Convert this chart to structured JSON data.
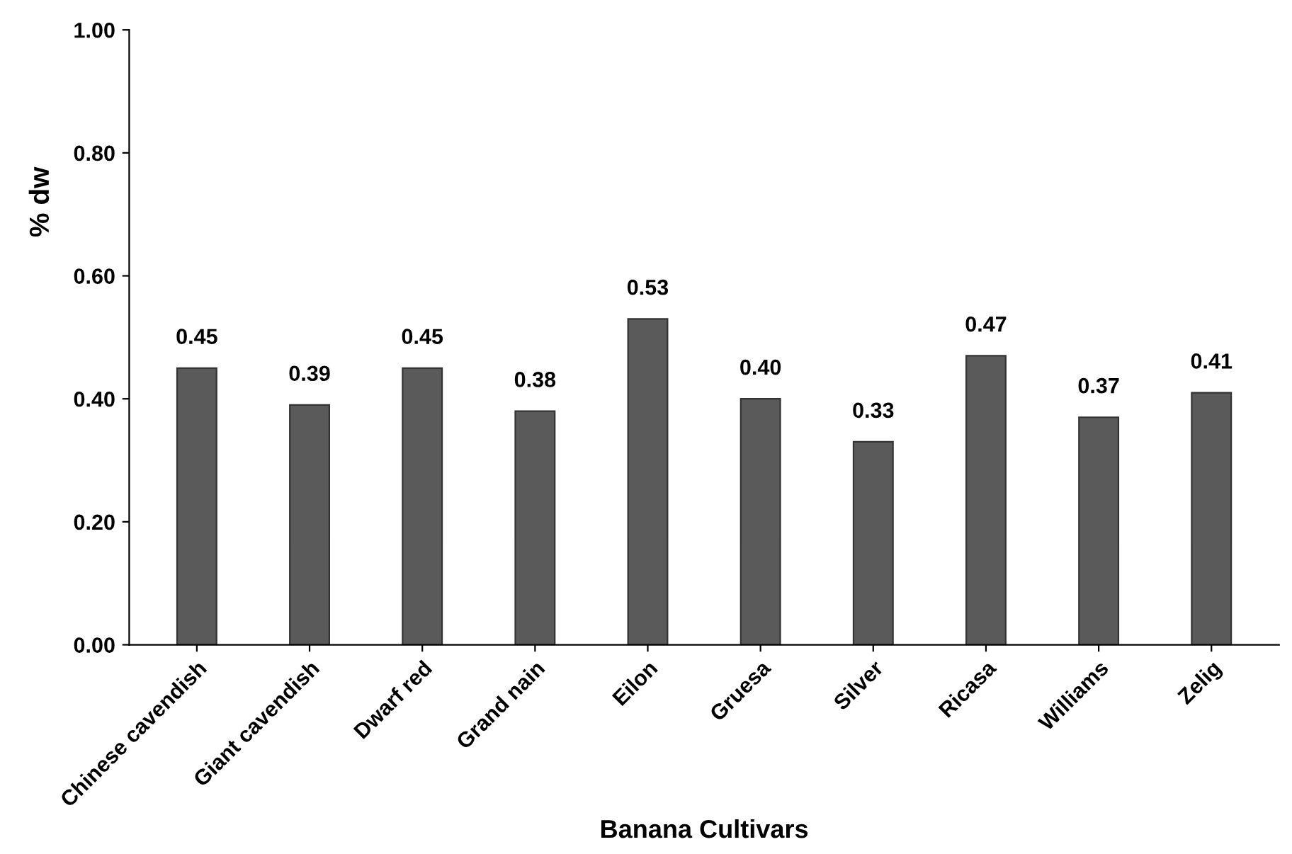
{
  "chart_data": {
    "type": "bar",
    "xlabel": "Banana Cultivars",
    "ylabel": "% dw",
    "categories": [
      "Chinese cavendish",
      "Giant cavendish",
      "Dwarf red",
      "Grand nain",
      "Eilon",
      "Gruesa",
      "Silver",
      "Ricasa",
      "Williams",
      "Zelig"
    ],
    "values": [
      0.45,
      0.39,
      0.45,
      0.38,
      0.53,
      0.4,
      0.33,
      0.47,
      0.37,
      0.41
    ],
    "value_labels": [
      "0.45",
      "0.39",
      "0.45",
      "0.38",
      "0.53",
      "0.40",
      "0.33",
      "0.47",
      "0.37",
      "0.41"
    ],
    "color": "#5a5a5a",
    "ylim": [
      0,
      1
    ],
    "yticks": [
      {
        "value": 0,
        "label": "0.00"
      },
      {
        "value": 0.2,
        "label": "0.20"
      },
      {
        "value": 0.4,
        "label": "0.40"
      },
      {
        "value": 0.6,
        "label": "0.60"
      },
      {
        "value": 0.8,
        "label": "0.80"
      },
      {
        "value": 1,
        "label": "1.00"
      }
    ],
    "grid": false,
    "legend": false
  }
}
